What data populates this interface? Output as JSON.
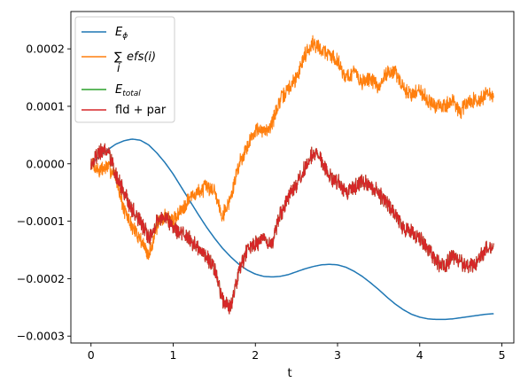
{
  "chart_data": {
    "type": "line",
    "xlabel": "t",
    "ylabel": "",
    "title": "",
    "xlim": [
      -0.245,
      5.145
    ],
    "ylim": [
      -0.000312,
      0.000265
    ],
    "xticks": [
      0,
      1,
      2,
      3,
      4,
      5
    ],
    "xtick_labels": [
      "0",
      "1",
      "2",
      "3",
      "4",
      "5"
    ],
    "yticks": [
      -0.0003,
      -0.0002,
      -0.0001,
      0.0,
      0.0001,
      0.0002
    ],
    "ytick_labels": [
      "−0.0003",
      "−0.0002",
      "−0.0001",
      "0.0000",
      "0.0001",
      "0.0002"
    ],
    "grid": false,
    "legend_position": "upper-left",
    "series": [
      {
        "name": "E_phi",
        "label_main": "E",
        "label_sub": "ϕ",
        "color": "#1f77b4",
        "noisy": false,
        "x": [
          0,
          0.1,
          0.2,
          0.3,
          0.4,
          0.5,
          0.6,
          0.7,
          0.8,
          0.9,
          1.0,
          1.1,
          1.2,
          1.3,
          1.4,
          1.5,
          1.6,
          1.7,
          1.8,
          1.9,
          2.0,
          2.1,
          2.2,
          2.3,
          2.4,
          2.5,
          2.6,
          2.7,
          2.8,
          2.9,
          3.0,
          3.1,
          3.2,
          3.3,
          3.4,
          3.5,
          3.6,
          3.7,
          3.8,
          3.9,
          4.0,
          4.1,
          4.2,
          4.3,
          4.4,
          4.5,
          4.6,
          4.7,
          4.8,
          4.9
        ],
        "y": [
          0.0,
          1.2e-05,
          2.4e-05,
          3.4e-05,
          4e-05,
          4.3e-05,
          4.1e-05,
          3.3e-05,
          1.9e-05,
          2e-06,
          -1.8e-05,
          -4.1e-05,
          -6.4e-05,
          -8.7e-05,
          -0.000109,
          -0.000129,
          -0.000147,
          -0.000162,
          -0.000175,
          -0.000185,
          -0.000192,
          -0.000196,
          -0.000197,
          -0.000196,
          -0.000193,
          -0.000188,
          -0.000183,
          -0.000179,
          -0.000176,
          -0.000175,
          -0.000176,
          -0.00018,
          -0.000187,
          -0.000196,
          -0.000207,
          -0.000219,
          -0.000232,
          -0.000244,
          -0.000254,
          -0.000262,
          -0.000267,
          -0.00027,
          -0.000271,
          -0.000271,
          -0.00027,
          -0.000268,
          -0.000266,
          -0.000264,
          -0.000262,
          -0.000261
        ]
      },
      {
        "name": "sum_efs",
        "label_main": "efs(i)",
        "label_sub": "i",
        "color": "#ff7f0e",
        "noisy": true,
        "x": [
          0,
          0.1,
          0.2,
          0.3,
          0.4,
          0.5,
          0.6,
          0.7,
          0.8,
          0.9,
          1.0,
          1.1,
          1.2,
          1.3,
          1.4,
          1.5,
          1.6,
          1.7,
          1.8,
          1.9,
          2.0,
          2.1,
          2.2,
          2.3,
          2.4,
          2.5,
          2.6,
          2.7,
          2.8,
          2.9,
          3.0,
          3.1,
          3.2,
          3.3,
          3.4,
          3.5,
          3.6,
          3.7,
          3.8,
          3.9,
          4.0,
          4.1,
          4.2,
          4.3,
          4.4,
          4.5,
          4.6,
          4.7,
          4.8,
          4.9
        ],
        "y": [
          0.0,
          -1.2e-05,
          -5e-06,
          -2e-05,
          -8e-05,
          -0.00011,
          -0.00013,
          -0.00016,
          -0.00011,
          -9e-05,
          -0.0001,
          -8e-05,
          -6e-05,
          -5e-05,
          -4e-05,
          -4.5e-05,
          -9e-05,
          -6e-05,
          0.0,
          3e-05,
          6e-05,
          5.5e-05,
          7e-05,
          0.00011,
          0.00013,
          0.00015,
          0.00019,
          0.00021,
          0.0002,
          0.00019,
          0.00018,
          0.00015,
          0.00016,
          0.00014,
          0.00015,
          0.00013,
          0.00016,
          0.00016,
          0.00013,
          0.00012,
          0.00013,
          0.00011,
          0.0001,
          0.0001,
          0.00011,
          9e-05,
          0.00011,
          0.00011,
          0.00012,
          0.00012
        ],
        "amp": 1.2e-05,
        "seed": 7
      },
      {
        "name": "E_total",
        "label_main": "E",
        "label_sub": "total",
        "color": "#2ca02c",
        "noisy": true,
        "x": [
          0,
          0.1,
          0.2,
          0.3,
          0.4,
          0.5,
          0.6,
          0.7,
          0.8,
          0.9,
          1.0,
          1.1,
          1.2,
          1.3,
          1.4,
          1.5,
          1.6,
          1.7,
          1.8,
          1.9,
          2.0,
          2.1,
          2.2,
          2.3,
          2.4,
          2.5,
          2.6,
          2.7,
          2.8,
          2.9,
          3.0,
          3.1,
          3.2,
          3.3,
          3.4,
          3.5,
          3.6,
          3.7,
          3.8,
          3.9,
          4.0,
          4.1,
          4.2,
          4.3,
          4.4,
          4.5,
          4.6,
          4.7,
          4.8,
          4.9
        ],
        "y": [
          0.0,
          2e-05,
          2.5e-05,
          -2e-05,
          -5e-05,
          -8e-05,
          -0.0001,
          -0.00013,
          -0.0001,
          -9e-05,
          -0.00011,
          -0.00012,
          -0.00013,
          -0.00015,
          -0.00016,
          -0.00018,
          -0.00024,
          -0.00025,
          -0.00019,
          -0.00015,
          -0.00014,
          -0.00013,
          -0.00014,
          -9e-05,
          -6e-05,
          -4e-05,
          -1e-05,
          2e-05,
          1e-05,
          -2e-05,
          -3e-05,
          -5e-05,
          -4e-05,
          -3e-05,
          -4e-05,
          -5e-05,
          -7e-05,
          -9e-05,
          -0.00011,
          -0.00012,
          -0.00013,
          -0.00015,
          -0.00017,
          -0.00018,
          -0.00016,
          -0.00017,
          -0.00018,
          -0.00017,
          -0.00015,
          -0.00014
        ],
        "amp": 1.3e-05,
        "seed": 19
      },
      {
        "name": "fld_plus_par",
        "label_main": "fld + par",
        "label_sub": "",
        "color": "#d62728",
        "noisy": true,
        "x": [
          0,
          0.1,
          0.2,
          0.3,
          0.4,
          0.5,
          0.6,
          0.7,
          0.8,
          0.9,
          1.0,
          1.1,
          1.2,
          1.3,
          1.4,
          1.5,
          1.6,
          1.7,
          1.8,
          1.9,
          2.0,
          2.1,
          2.2,
          2.3,
          2.4,
          2.5,
          2.6,
          2.7,
          2.8,
          2.9,
          3.0,
          3.1,
          3.2,
          3.3,
          3.4,
          3.5,
          3.6,
          3.7,
          3.8,
          3.9,
          4.0,
          4.1,
          4.2,
          4.3,
          4.4,
          4.5,
          4.6,
          4.7,
          4.8,
          4.9
        ],
        "y": [
          0.0,
          2e-05,
          2.5e-05,
          -2e-05,
          -5e-05,
          -8e-05,
          -0.0001,
          -0.00013,
          -0.0001,
          -9e-05,
          -0.00011,
          -0.00012,
          -0.00013,
          -0.00015,
          -0.00016,
          -0.00018,
          -0.00024,
          -0.00025,
          -0.00019,
          -0.00015,
          -0.00014,
          -0.00013,
          -0.00014,
          -9e-05,
          -6e-05,
          -4e-05,
          -1e-05,
          2e-05,
          1e-05,
          -2e-05,
          -3e-05,
          -5e-05,
          -4e-05,
          -3e-05,
          -4e-05,
          -5e-05,
          -7e-05,
          -9e-05,
          -0.00011,
          -0.00012,
          -0.00013,
          -0.00015,
          -0.00017,
          -0.00018,
          -0.00016,
          -0.00017,
          -0.00018,
          -0.00017,
          -0.00015,
          -0.00014
        ],
        "amp": 1.3e-05,
        "seed": 19
      }
    ]
  }
}
